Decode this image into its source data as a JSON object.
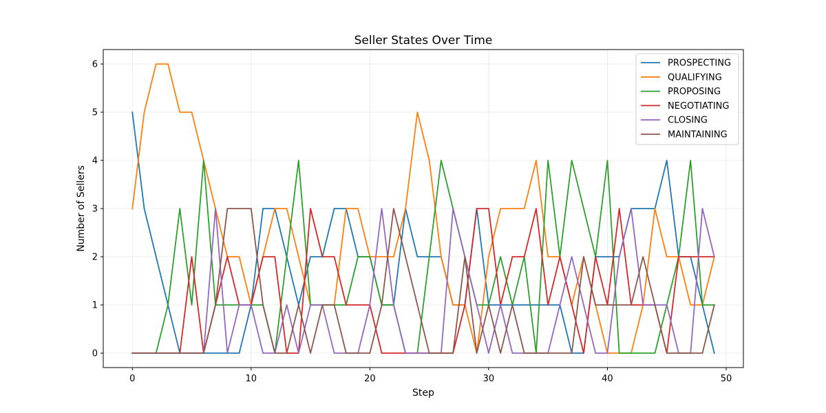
{
  "chart_data": {
    "type": "line",
    "title": "Seller States Over Time",
    "xlabel": "Step",
    "ylabel": "Number of Sellers",
    "xlim": [
      -2.45,
      51.45
    ],
    "ylim": [
      -0.3,
      6.3
    ],
    "xticks": [
      0,
      10,
      20,
      30,
      40,
      50
    ],
    "yticks": [
      0,
      1,
      2,
      3,
      4,
      5,
      6
    ],
    "grid": true,
    "legend_position": "top-right",
    "x": [
      0,
      1,
      2,
      3,
      4,
      5,
      6,
      7,
      8,
      9,
      10,
      11,
      12,
      13,
      14,
      15,
      16,
      17,
      18,
      19,
      20,
      21,
      22,
      23,
      24,
      25,
      26,
      27,
      28,
      29,
      30,
      31,
      32,
      33,
      34,
      35,
      36,
      37,
      38,
      39,
      40,
      41,
      42,
      43,
      44,
      45,
      46,
      47,
      48,
      49
    ],
    "series": [
      {
        "name": "PROSPECTING",
        "color": "#1f77b4",
        "values": [
          5,
          3,
          2,
          1,
          0,
          0,
          0,
          0,
          0,
          0,
          1,
          3,
          3,
          2,
          1,
          2,
          2,
          3,
          3,
          2,
          2,
          1,
          1,
          3,
          2,
          2,
          2,
          1,
          1,
          3,
          1,
          1,
          1,
          1,
          1,
          1,
          1,
          0,
          0,
          2,
          2,
          2,
          3,
          3,
          3,
          4,
          2,
          2,
          1,
          0
        ]
      },
      {
        "name": "QUALIFYING",
        "color": "#ff7f0e",
        "values": [
          3,
          5,
          6,
          6,
          5,
          5,
          4,
          3,
          2,
          2,
          1,
          2,
          3,
          3,
          2,
          1,
          1,
          1,
          3,
          3,
          2,
          2,
          2,
          3,
          5,
          4,
          2,
          1,
          1,
          0,
          2,
          3,
          3,
          3,
          4,
          2,
          2,
          1,
          2,
          1,
          0,
          0,
          0,
          1,
          3,
          2,
          2,
          1,
          1,
          2
        ]
      },
      {
        "name": "PROPOSING",
        "color": "#2ca02c",
        "values": [
          0,
          0,
          0,
          1,
          3,
          1,
          4,
          1,
          1,
          1,
          1,
          1,
          0,
          2,
          4,
          1,
          1,
          1,
          1,
          2,
          2,
          1,
          1,
          0,
          0,
          2,
          4,
          3,
          2,
          1,
          1,
          2,
          1,
          2,
          0,
          4,
          2,
          4,
          3,
          2,
          4,
          0,
          0,
          0,
          0,
          1,
          2,
          4,
          1,
          1
        ]
      },
      {
        "name": "NEGOTIATING",
        "color": "#d62728",
        "values": [
          0,
          0,
          0,
          0,
          0,
          2,
          0,
          1,
          2,
          1,
          1,
          2,
          2,
          0,
          0,
          3,
          2,
          2,
          1,
          1,
          1,
          0,
          0,
          0,
          0,
          0,
          0,
          0,
          1,
          3,
          3,
          1,
          2,
          2,
          3,
          1,
          2,
          1,
          0,
          2,
          1,
          3,
          1,
          1,
          1,
          0,
          2,
          2,
          2,
          2
        ]
      },
      {
        "name": "CLOSING",
        "color": "#9467bd",
        "values": [
          0,
          0,
          0,
          0,
          0,
          0,
          0,
          3,
          0,
          1,
          1,
          0,
          0,
          1,
          0,
          1,
          1,
          0,
          0,
          0,
          1,
          3,
          1,
          0,
          0,
          0,
          0,
          3,
          2,
          1,
          0,
          1,
          0,
          0,
          0,
          0,
          1,
          2,
          1,
          0,
          0,
          2,
          3,
          1,
          1,
          1,
          0,
          0,
          3,
          2
        ]
      },
      {
        "name": "MAINTAINING",
        "color": "#8c564b",
        "values": [
          0,
          0,
          0,
          0,
          0,
          0,
          0,
          1,
          3,
          3,
          3,
          1,
          0,
          0,
          1,
          0,
          1,
          1,
          0,
          0,
          0,
          1,
          3,
          2,
          1,
          0,
          0,
          0,
          2,
          0,
          1,
          0,
          1,
          0,
          0,
          0,
          0,
          0,
          2,
          1,
          1,
          1,
          1,
          2,
          1,
          0,
          0,
          0,
          0,
          1
        ]
      }
    ]
  }
}
